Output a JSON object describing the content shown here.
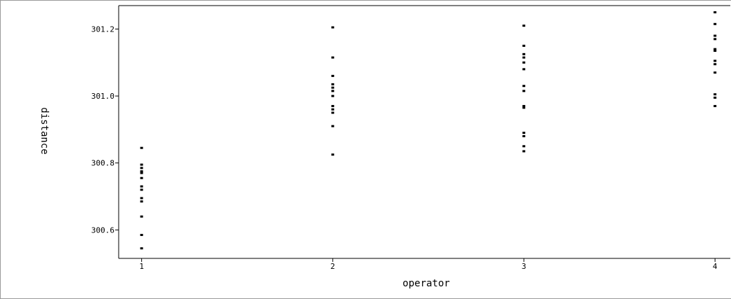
{
  "chart_data": {
    "type": "scatter",
    "xlabel": "operator",
    "ylabel": "distance",
    "x_ticks": [
      "1",
      "2",
      "3",
      "4"
    ],
    "y_ticks": [
      "300.6",
      "300.8",
      "301.0",
      "301.2"
    ],
    "xlim": [
      0.88,
      4.08
    ],
    "ylim": [
      300.515,
      301.27
    ],
    "grid": false,
    "series": [
      {
        "values": [
          {
            "x": 1,
            "y": 300.845
          },
          {
            "x": 1,
            "y": 300.795
          },
          {
            "x": 1,
            "y": 300.785
          },
          {
            "x": 1,
            "y": 300.775
          },
          {
            "x": 1,
            "y": 300.77
          },
          {
            "x": 1,
            "y": 300.755
          },
          {
            "x": 1,
            "y": 300.73
          },
          {
            "x": 1,
            "y": 300.72
          },
          {
            "x": 1,
            "y": 300.695
          },
          {
            "x": 1,
            "y": 300.685
          },
          {
            "x": 1,
            "y": 300.64
          },
          {
            "x": 1,
            "y": 300.585
          },
          {
            "x": 1,
            "y": 300.545
          },
          {
            "x": 2,
            "y": 301.205
          },
          {
            "x": 2,
            "y": 301.115
          },
          {
            "x": 2,
            "y": 301.06
          },
          {
            "x": 2,
            "y": 301.035
          },
          {
            "x": 2,
            "y": 301.025
          },
          {
            "x": 2,
            "y": 301.015
          },
          {
            "x": 2,
            "y": 301.0
          },
          {
            "x": 2,
            "y": 300.97
          },
          {
            "x": 2,
            "y": 300.96
          },
          {
            "x": 2,
            "y": 300.95
          },
          {
            "x": 2,
            "y": 300.91
          },
          {
            "x": 2,
            "y": 300.825
          },
          {
            "x": 3,
            "y": 301.21
          },
          {
            "x": 3,
            "y": 301.15
          },
          {
            "x": 3,
            "y": 301.125
          },
          {
            "x": 3,
            "y": 301.115
          },
          {
            "x": 3,
            "y": 301.1
          },
          {
            "x": 3,
            "y": 301.08
          },
          {
            "x": 3,
            "y": 301.03
          },
          {
            "x": 3,
            "y": 301.015
          },
          {
            "x": 3,
            "y": 300.97
          },
          {
            "x": 3,
            "y": 300.965
          },
          {
            "x": 3,
            "y": 300.89
          },
          {
            "x": 3,
            "y": 300.88
          },
          {
            "x": 3,
            "y": 300.85
          },
          {
            "x": 3,
            "y": 300.835
          },
          {
            "x": 4,
            "y": 301.25
          },
          {
            "x": 4,
            "y": 301.215
          },
          {
            "x": 4,
            "y": 301.18
          },
          {
            "x": 4,
            "y": 301.17
          },
          {
            "x": 4,
            "y": 301.14
          },
          {
            "x": 4,
            "y": 301.135
          },
          {
            "x": 4,
            "y": 301.105
          },
          {
            "x": 4,
            "y": 301.095
          },
          {
            "x": 4,
            "y": 301.07
          },
          {
            "x": 4,
            "y": 301.005
          },
          {
            "x": 4,
            "y": 300.995
          },
          {
            "x": 4,
            "y": 300.97
          }
        ]
      }
    ],
    "colors": {
      "marker": "#000000",
      "axis": "#000000"
    }
  }
}
